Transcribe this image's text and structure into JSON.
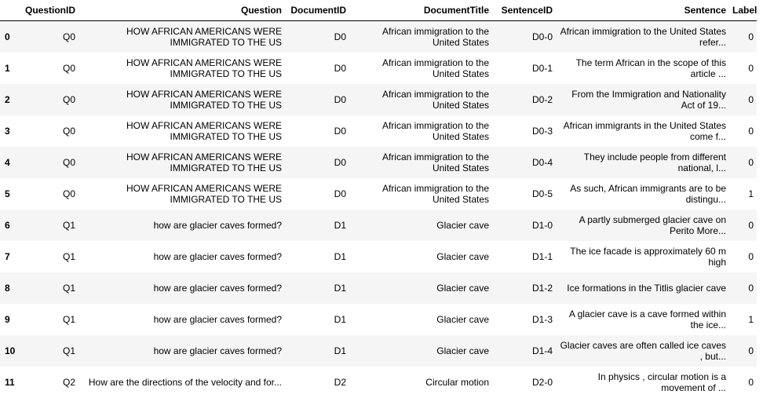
{
  "columns": {
    "index": "",
    "question_id": "QuestionID",
    "question": "Question",
    "document_id": "DocumentID",
    "document_title": "DocumentTitle",
    "sentence_id": "SentenceID",
    "sentence": "Sentence",
    "label": "Label"
  },
  "rows": [
    {
      "index": "0",
      "question_id": "Q0",
      "question": "HOW AFRICAN AMERICANS WERE IMMIGRATED TO THE US",
      "document_id": "D0",
      "document_title": "African immigration to the United States",
      "sentence_id": "D0-0",
      "sentence": "African immigration to the United States refer...",
      "label": "0"
    },
    {
      "index": "1",
      "question_id": "Q0",
      "question": "HOW AFRICAN AMERICANS WERE IMMIGRATED TO THE US",
      "document_id": "D0",
      "document_title": "African immigration to the United States",
      "sentence_id": "D0-1",
      "sentence": "The term African in the scope of this article ...",
      "label": "0"
    },
    {
      "index": "2",
      "question_id": "Q0",
      "question": "HOW AFRICAN AMERICANS WERE IMMIGRATED TO THE US",
      "document_id": "D0",
      "document_title": "African immigration to the United States",
      "sentence_id": "D0-2",
      "sentence": "From the Immigration and Nationality Act of 19...",
      "label": "0"
    },
    {
      "index": "3",
      "question_id": "Q0",
      "question": "HOW AFRICAN AMERICANS WERE IMMIGRATED TO THE US",
      "document_id": "D0",
      "document_title": "African immigration to the United States",
      "sentence_id": "D0-3",
      "sentence": "African immigrants in the United States come f...",
      "label": "0"
    },
    {
      "index": "4",
      "question_id": "Q0",
      "question": "HOW AFRICAN AMERICANS WERE IMMIGRATED TO THE US",
      "document_id": "D0",
      "document_title": "African immigration to the United States",
      "sentence_id": "D0-4",
      "sentence": "They include people from different national, l...",
      "label": "0"
    },
    {
      "index": "5",
      "question_id": "Q0",
      "question": "HOW AFRICAN AMERICANS WERE IMMIGRATED TO THE US",
      "document_id": "D0",
      "document_title": "African immigration to the United States",
      "sentence_id": "D0-5",
      "sentence": "As such, African immigrants are to be distingu...",
      "label": "1"
    },
    {
      "index": "6",
      "question_id": "Q1",
      "question": "how are glacier caves formed?",
      "document_id": "D1",
      "document_title": "Glacier cave",
      "sentence_id": "D1-0",
      "sentence": "A partly submerged glacier cave on Perito More...",
      "label": "0"
    },
    {
      "index": "7",
      "question_id": "Q1",
      "question": "how are glacier caves formed?",
      "document_id": "D1",
      "document_title": "Glacier cave",
      "sentence_id": "D1-1",
      "sentence": "The ice facade is approximately 60 m high",
      "label": "0"
    },
    {
      "index": "8",
      "question_id": "Q1",
      "question": "how are glacier caves formed?",
      "document_id": "D1",
      "document_title": "Glacier cave",
      "sentence_id": "D1-2",
      "sentence": "Ice formations in the Titlis glacier cave",
      "label": "0"
    },
    {
      "index": "9",
      "question_id": "Q1",
      "question": "how are glacier caves formed?",
      "document_id": "D1",
      "document_title": "Glacier cave",
      "sentence_id": "D1-3",
      "sentence": "A glacier cave is a cave formed within the ice...",
      "label": "1"
    },
    {
      "index": "10",
      "question_id": "Q1",
      "question": "how are glacier caves formed?",
      "document_id": "D1",
      "document_title": "Glacier cave",
      "sentence_id": "D1-4",
      "sentence": "Glacier caves are often called ice caves , but...",
      "label": "0"
    },
    {
      "index": "11",
      "question_id": "Q2",
      "question": "How are the directions of the velocity and for...",
      "document_id": "D2",
      "document_title": "Circular motion",
      "sentence_id": "D2-0",
      "sentence": "In physics , circular motion is a movement of ...",
      "label": "0"
    }
  ]
}
